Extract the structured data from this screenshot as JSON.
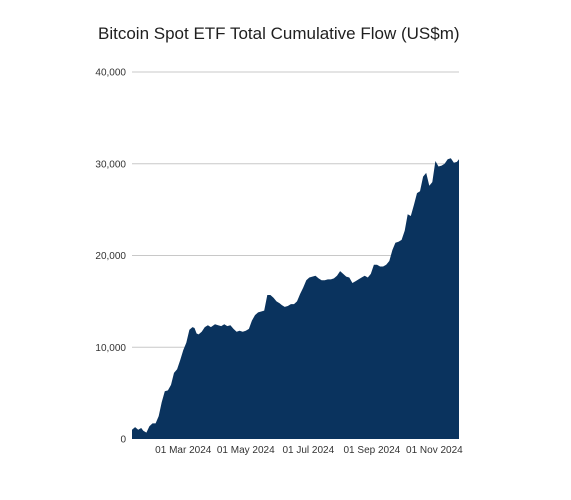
{
  "chart_data": {
    "type": "area",
    "title": "Bitcoin Spot ETF Total Cumulative Flow (US$m)",
    "xlabel": "",
    "ylabel": "",
    "ylim": [
      0,
      40000
    ],
    "yticks": [
      0,
      10000,
      20000,
      30000,
      40000
    ],
    "ytick_labels": [
      "0",
      "10,000",
      "20,000",
      "30,000",
      "40,000"
    ],
    "xlim": [
      "2024-01-11",
      "2024-11-25"
    ],
    "xticks": [
      {
        "date": "2024-03-01",
        "label": "01 Mar 2024"
      },
      {
        "date": "2024-05-01",
        "label": "01 May 2024"
      },
      {
        "date": "2024-07-01",
        "label": "01 Jul 2024"
      },
      {
        "date": "2024-09-01",
        "label": "01 Sep 2024"
      },
      {
        "date": "2024-11-01",
        "label": "01 Nov 2024"
      }
    ],
    "grid": true,
    "legend": "none",
    "fill_color": "#0a335e",
    "series": [
      {
        "x": [
          "2024-01-11",
          "2024-01-14",
          "2024-01-17",
          "2024-01-20",
          "2024-01-22",
          "2024-01-25",
          "2024-01-28",
          "2024-01-31",
          "2024-02-03",
          "2024-02-06",
          "2024-02-09",
          "2024-02-12",
          "2024-02-15",
          "2024-02-18",
          "2024-02-21",
          "2024-02-24",
          "2024-02-27",
          "2024-03-01",
          "2024-03-04",
          "2024-03-07",
          "2024-03-10",
          "2024-03-12",
          "2024-03-14",
          "2024-03-16",
          "2024-03-19",
          "2024-03-22",
          "2024-03-25",
          "2024-03-28",
          "2024-04-01",
          "2024-04-04",
          "2024-04-07",
          "2024-04-10",
          "2024-04-13",
          "2024-04-16",
          "2024-04-19",
          "2024-04-22",
          "2024-04-25",
          "2024-04-28",
          "2024-05-01",
          "2024-05-04",
          "2024-05-07",
          "2024-05-10",
          "2024-05-13",
          "2024-05-16",
          "2024-05-19",
          "2024-05-22",
          "2024-05-25",
          "2024-05-28",
          "2024-05-31",
          "2024-06-03",
          "2024-06-05",
          "2024-06-08",
          "2024-06-11",
          "2024-06-14",
          "2024-06-17",
          "2024-06-20",
          "2024-06-23",
          "2024-06-26",
          "2024-06-29",
          "2024-07-02",
          "2024-07-05",
          "2024-07-08",
          "2024-07-11",
          "2024-07-14",
          "2024-07-17",
          "2024-07-20",
          "2024-07-23",
          "2024-07-26",
          "2024-07-29",
          "2024-08-01",
          "2024-08-04",
          "2024-08-07",
          "2024-08-10",
          "2024-08-13",
          "2024-08-16",
          "2024-08-19",
          "2024-08-22",
          "2024-08-25",
          "2024-08-28",
          "2024-08-31",
          "2024-09-03",
          "2024-09-06",
          "2024-09-09",
          "2024-09-12",
          "2024-09-15",
          "2024-09-18",
          "2024-09-21",
          "2024-09-24",
          "2024-09-27",
          "2024-09-30",
          "2024-10-03",
          "2024-10-06",
          "2024-10-09",
          "2024-10-12",
          "2024-10-15",
          "2024-10-18",
          "2024-10-21",
          "2024-10-24",
          "2024-10-27",
          "2024-10-30",
          "2024-11-02",
          "2024-11-05",
          "2024-11-08",
          "2024-11-11",
          "2024-11-14",
          "2024-11-17",
          "2024-11-20",
          "2024-11-23",
          "2024-11-25"
        ],
        "y": [
          1000,
          1300,
          1000,
          1200,
          900,
          700,
          1400,
          1700,
          1700,
          2500,
          4000,
          5200,
          5300,
          5900,
          7200,
          7600,
          8600,
          9700,
          10500,
          11900,
          12200,
          12100,
          11500,
          11400,
          11700,
          12200,
          12400,
          12200,
          12500,
          12400,
          12300,
          12500,
          12300,
          12400,
          12000,
          11700,
          11800,
          11700,
          11800,
          12000,
          12900,
          13500,
          13800,
          13900,
          14000,
          15700,
          15700,
          15400,
          15000,
          14800,
          14600,
          14400,
          14500,
          14700,
          14700,
          15000,
          15800,
          16500,
          17300,
          17600,
          17700,
          17800,
          17500,
          17300,
          17300,
          17400,
          17400,
          17500,
          17800,
          18300,
          18000,
          17700,
          17600,
          17000,
          17200,
          17400,
          17600,
          17800,
          17600,
          18000,
          19000,
          19000,
          18800,
          18800,
          19000,
          19400,
          20600,
          21400,
          21500,
          21700,
          22700,
          24500,
          24300,
          25500,
          26800,
          27000,
          28600,
          29000,
          27600,
          28000,
          30300,
          29700,
          29800,
          30000,
          30500,
          30600,
          30100,
          30200,
          30500
        ]
      }
    ]
  }
}
